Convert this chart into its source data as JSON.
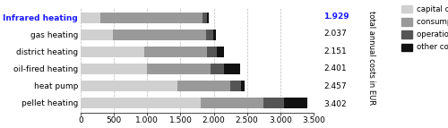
{
  "categories": [
    "Infrared heating",
    "gas heating",
    "district heating",
    "oil-fired heating",
    "heat pump",
    "pellet heating"
  ],
  "totals": [
    "1.929",
    "2.037",
    "2.151",
    "2.401",
    "2.457",
    "3.402"
  ],
  "segments": {
    "capital costs": [
      300,
      480,
      950,
      1000,
      1450,
      1800
    ],
    "consumptions costs": [
      1529,
      1407,
      950,
      950,
      800,
      950
    ],
    "operation costs": [
      70,
      100,
      151,
      201,
      157,
      302
    ],
    "other costs": [
      30,
      50,
      100,
      250,
      50,
      350
    ]
  },
  "colors": {
    "capital costs": "#d0d0d0",
    "consumptions costs": "#999999",
    "operation costs": "#555555",
    "other costs": "#111111"
  },
  "highlight_category": "Infrared heating",
  "highlight_color": "#1a1aff",
  "ylabel_right": "total annual costs in EUR",
  "xlim": [
    0,
    3500
  ],
  "xticks": [
    0,
    500,
    1000,
    1500,
    2000,
    2500,
    3000,
    3500
  ],
  "xtick_labels": [
    "0",
    "500",
    "1.000",
    "1.500",
    "2.000",
    "2.500",
    "3.000",
    "3.500"
  ],
  "grid_color": "#bbbbbb",
  "bg_color": "#ffffff",
  "bar_height": 0.62,
  "fontsize": 6.5,
  "legend_fontsize": 6.2
}
